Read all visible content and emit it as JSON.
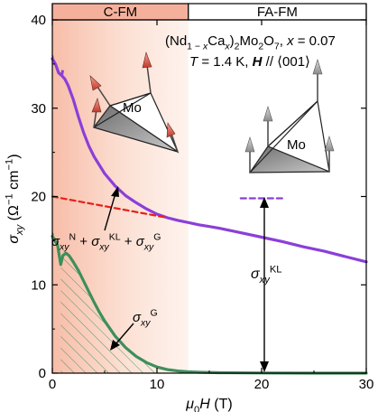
{
  "chart_data": {
    "type": "line",
    "title": "",
    "header_lines": [
      {
        "parts": [
          {
            "t": "(Nd"
          },
          {
            "t": "1 − ",
            "sub": true
          },
          {
            "t": "x",
            "sub": true,
            "it": true
          },
          {
            "t": "Ca"
          },
          {
            "t": "x",
            "sub": true,
            "it": true
          },
          {
            "t": ")"
          },
          {
            "t": "2",
            "sub": true
          },
          {
            "t": "Mo"
          },
          {
            "t": "2",
            "sub": true
          },
          {
            "t": "O"
          },
          {
            "t": "7",
            "sub": true
          },
          {
            "t": ", "
          },
          {
            "t": "x",
            "it": true
          },
          {
            "t": " = 0.07"
          }
        ]
      },
      {
        "parts": [
          {
            "t": "T",
            "it": true
          },
          {
            "t": " = 1.4 K, "
          },
          {
            "t": "H",
            "it": true,
            "b": true
          },
          {
            "t": " // ⟨001⟩"
          }
        ]
      }
    ],
    "xlabel_parts": [
      {
        "t": "μ",
        "it": true
      },
      {
        "t": "0",
        "sub": true
      },
      {
        "t": "H",
        "it": true
      },
      {
        "t": " (T)"
      }
    ],
    "ylabel_parts": [
      {
        "t": "σ",
        "it": true
      },
      {
        "t": "xy",
        "sub": true,
        "it": true
      },
      {
        "t": " (Ω"
      },
      {
        "t": "−1",
        "sup": true
      },
      {
        "t": " cm"
      },
      {
        "t": "−1",
        "sup": true
      },
      {
        "t": ")"
      }
    ],
    "xlim": [
      0,
      30
    ],
    "ylim": [
      0,
      40
    ],
    "xticks": [
      0,
      10,
      20,
      30
    ],
    "yticks": [
      0,
      10,
      20,
      30,
      40
    ],
    "grid": false,
    "regions": [
      {
        "label": "C-FM",
        "x_range": [
          0,
          13
        ],
        "color": "#f5b09b"
      },
      {
        "label": "FA-FM",
        "x_range": [
          13,
          30
        ],
        "color": "#ffffff"
      }
    ],
    "series": [
      {
        "key": "sigma_xy",
        "color": "#8b3fd9",
        "style": "solid",
        "x": [
          0.0,
          0.3,
          0.6,
          0.9,
          1.2,
          1.5,
          2,
          2.5,
          3,
          3.5,
          4,
          5,
          6,
          7,
          8,
          9,
          10,
          11,
          12,
          13,
          14,
          15,
          16,
          18,
          20,
          22,
          24,
          26,
          28,
          30
        ],
        "y": [
          35.6,
          35.0,
          34.0,
          33.7,
          33.3,
          32.6,
          31.0,
          29.0,
          27.2,
          25.7,
          24.5,
          22.6,
          21.2,
          20.1,
          19.3,
          18.6,
          18.0,
          17.6,
          17.3,
          17.05,
          16.8,
          16.6,
          16.4,
          15.9,
          15.4,
          14.9,
          14.3,
          13.8,
          13.2,
          12.6
        ]
      },
      {
        "key": "sigma_xy_G",
        "color": "#3c8f5b",
        "style": "solid",
        "x": [
          0.0,
          0.5,
          0.8,
          1.0,
          1.3,
          1.6,
          2,
          2.5,
          3,
          3.5,
          4,
          4.5,
          5,
          6,
          7,
          8,
          9,
          10,
          11,
          12,
          13,
          14,
          16,
          20,
          25,
          30
        ],
        "y": [
          15.5,
          14.5,
          12.3,
          13.3,
          13.6,
          13.3,
          12.6,
          11.6,
          10.4,
          9.2,
          8.0,
          6.9,
          5.9,
          4.2,
          2.9,
          1.9,
          1.2,
          0.7,
          0.4,
          0.25,
          0.15,
          0.1,
          0.05,
          0.02,
          0.0,
          0.0
        ]
      },
      {
        "key": "sigma_N_KL_G",
        "color": "#e8201b",
        "style": "dashed",
        "x": [
          0,
          11
        ],
        "y": [
          20,
          17.6
        ]
      },
      {
        "key": "sigma_KL_level",
        "color": "#8b3fd9",
        "style": "dashed",
        "x": [
          18,
          22
        ],
        "y": [
          19.8,
          19.8
        ]
      }
    ],
    "annotations": [
      {
        "parts": [
          {
            "t": "σ",
            "it": true
          },
          {
            "t": "xy",
            "sub": true,
            "it": true
          },
          {
            "t": "N",
            "sup": true
          },
          {
            "t": " + "
          },
          {
            "t": "σ",
            "it": true
          },
          {
            "t": "xy",
            "sub": true,
            "it": true
          },
          {
            "t": "KL",
            "sup": true
          },
          {
            "t": " + "
          },
          {
            "t": "σ",
            "it": true
          },
          {
            "t": "xy",
            "sub": true,
            "it": true
          },
          {
            "t": "G",
            "sup": true
          }
        ]
      },
      {
        "parts": [
          {
            "t": "σ",
            "it": true
          },
          {
            "t": "xy",
            "sub": true,
            "it": true
          },
          {
            "t": "G",
            "sup": true
          }
        ]
      },
      {
        "parts": [
          {
            "t": "σ",
            "it": true
          },
          {
            "t": "xy",
            "sub": true,
            "it": true
          },
          {
            "t": "KL",
            "sup": true
          }
        ]
      },
      {
        "parts": [
          {
            "t": "Mo"
          }
        ]
      },
      {
        "parts": [
          {
            "t": "Mo"
          }
        ]
      }
    ]
  }
}
